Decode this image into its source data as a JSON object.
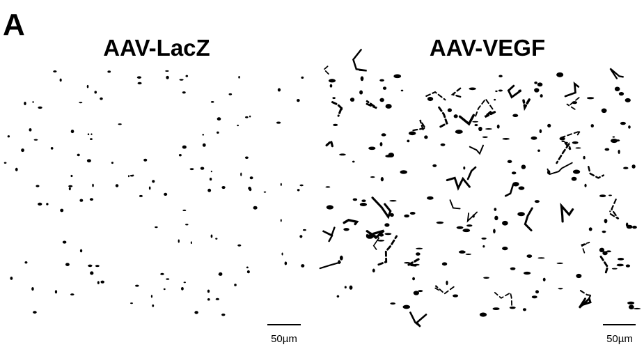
{
  "panel": {
    "label": "A",
    "left": {
      "title": "AAV-LacZ",
      "scale_bar": "50µm"
    },
    "right": {
      "title": "AAV-VEGF",
      "scale_bar": "50µm"
    }
  }
}
